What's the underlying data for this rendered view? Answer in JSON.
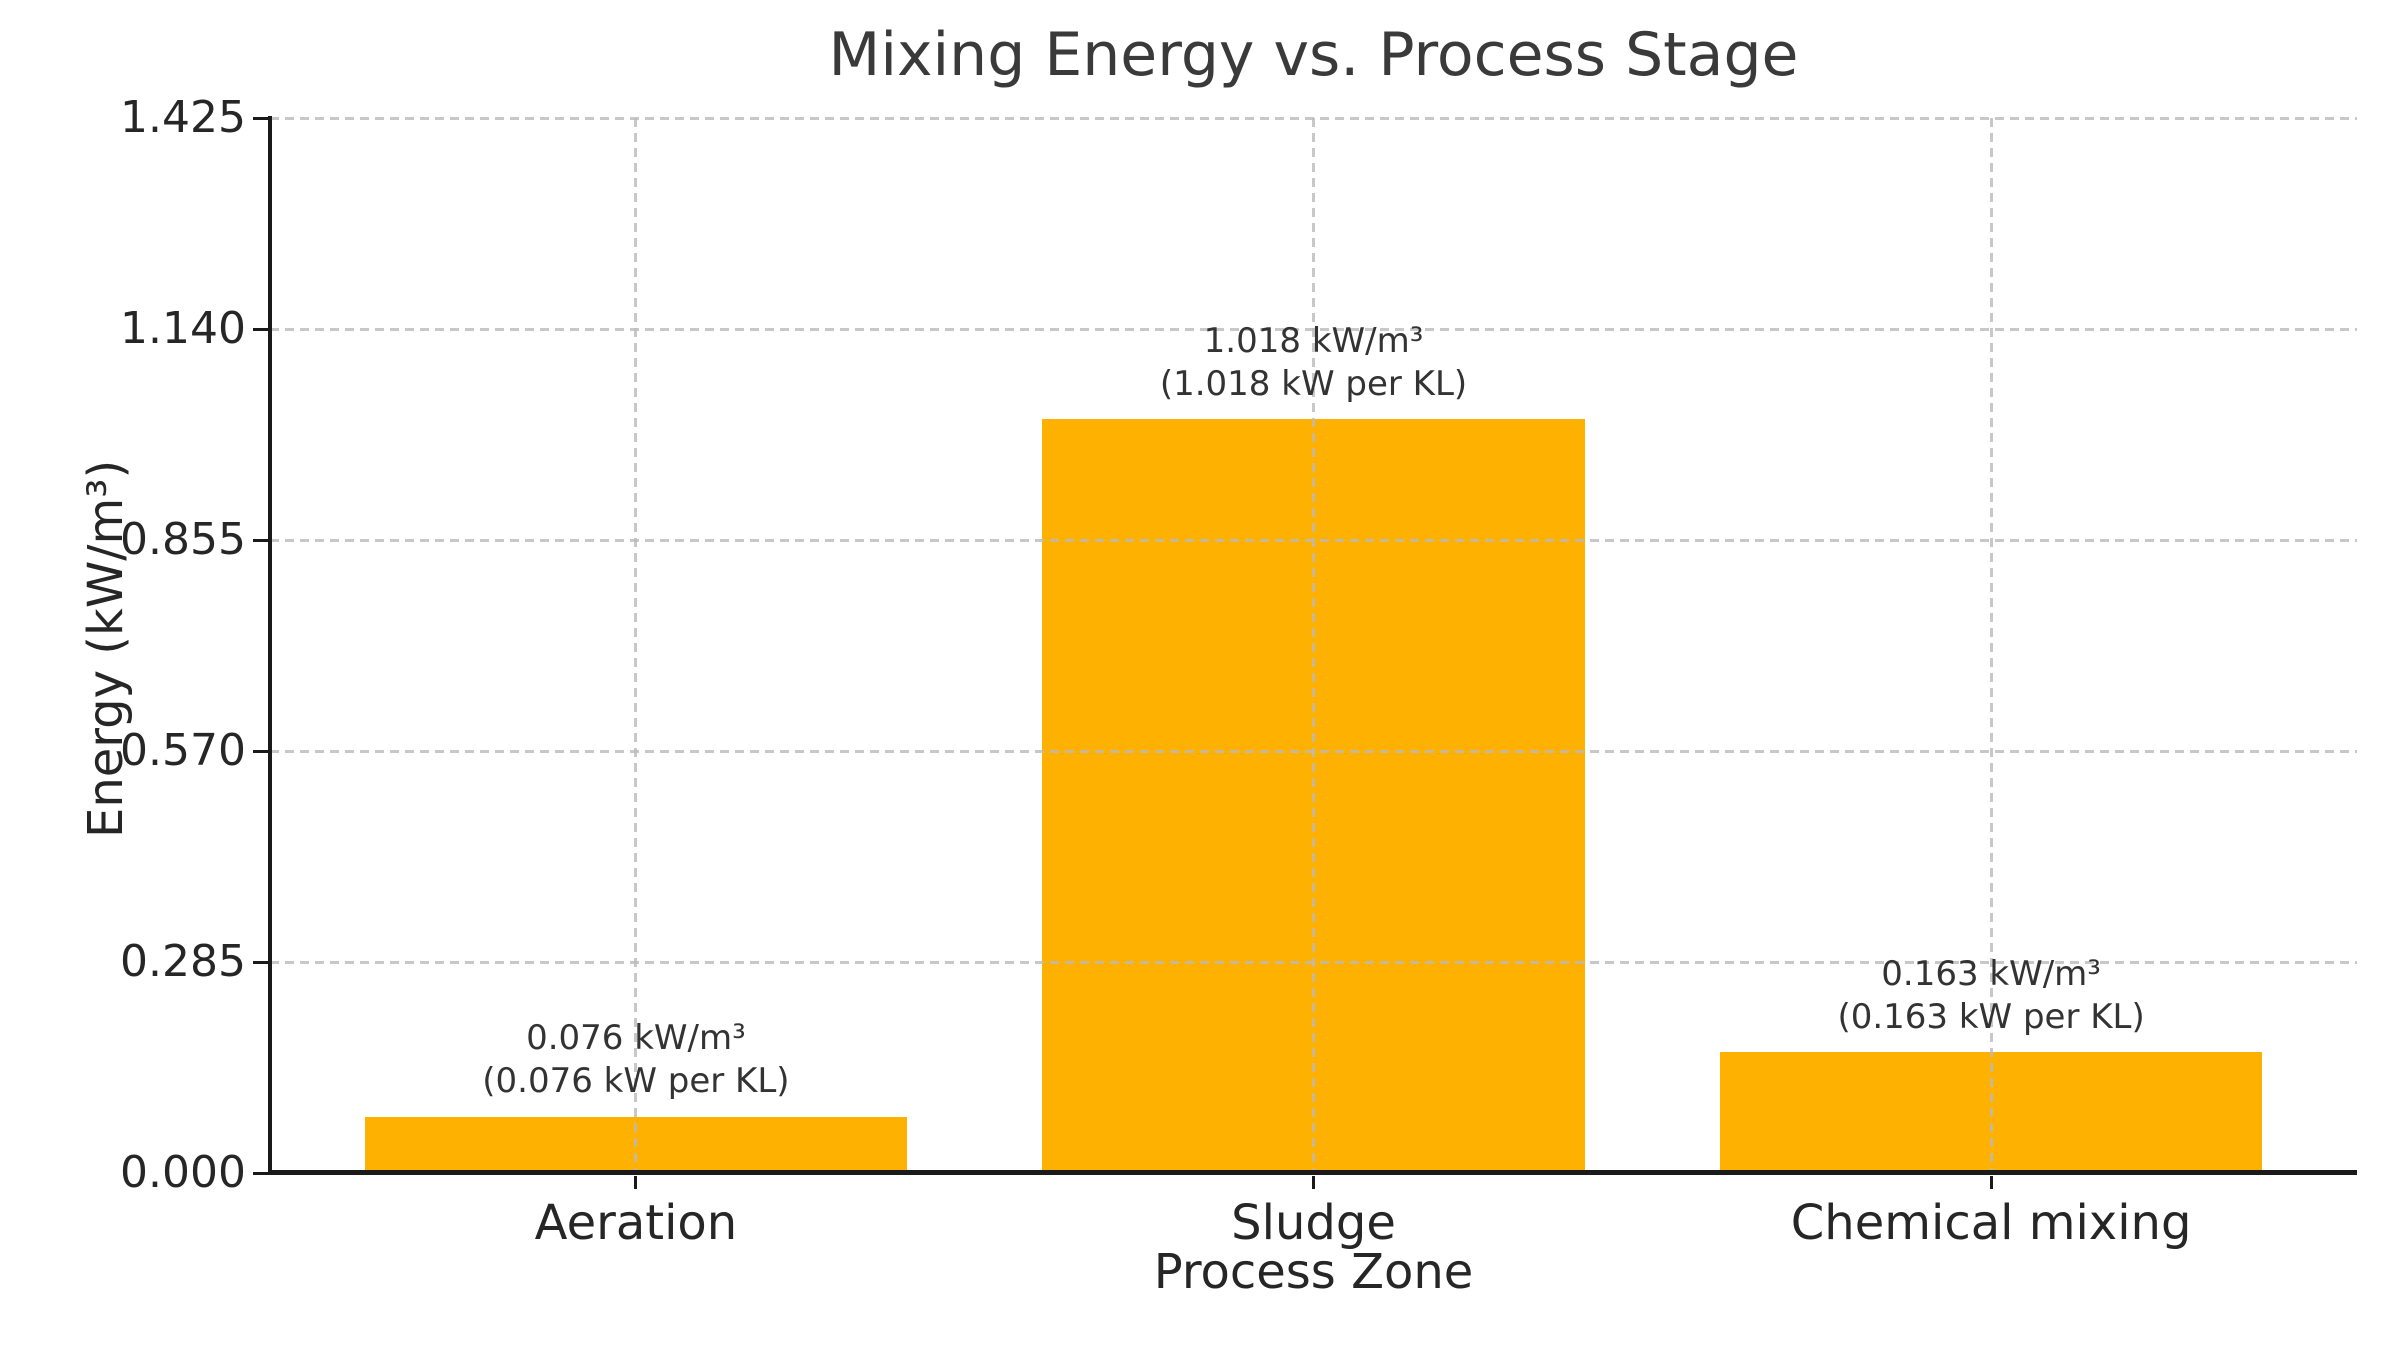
{
  "chart_data": {
    "type": "bar",
    "title": "Mixing Energy vs. Process Stage",
    "xlabel": "Process Zone",
    "ylabel": "Energy (kW/m³)",
    "categories": [
      "Aeration",
      "Sludge",
      "Chemical mixing"
    ],
    "values": [
      0.076,
      1.018,
      0.163
    ],
    "ylim": [
      0,
      1.425
    ],
    "ytick_labels": [
      "0.000",
      "0.285",
      "0.570",
      "0.855",
      "1.140",
      "1.425"
    ],
    "annotations": [
      {
        "line1": "0.076 kW/m³",
        "line2": "(0.076 kW per KL)"
      },
      {
        "line1": "1.018 kW/m³",
        "line2": "(1.018 kW per KL)"
      },
      {
        "line1": "0.163 kW/m³",
        "line2": "(0.163 kW per KL)"
      }
    ],
    "bar_color": "#FFB101",
    "grid": "dashed",
    "legend": "none"
  }
}
